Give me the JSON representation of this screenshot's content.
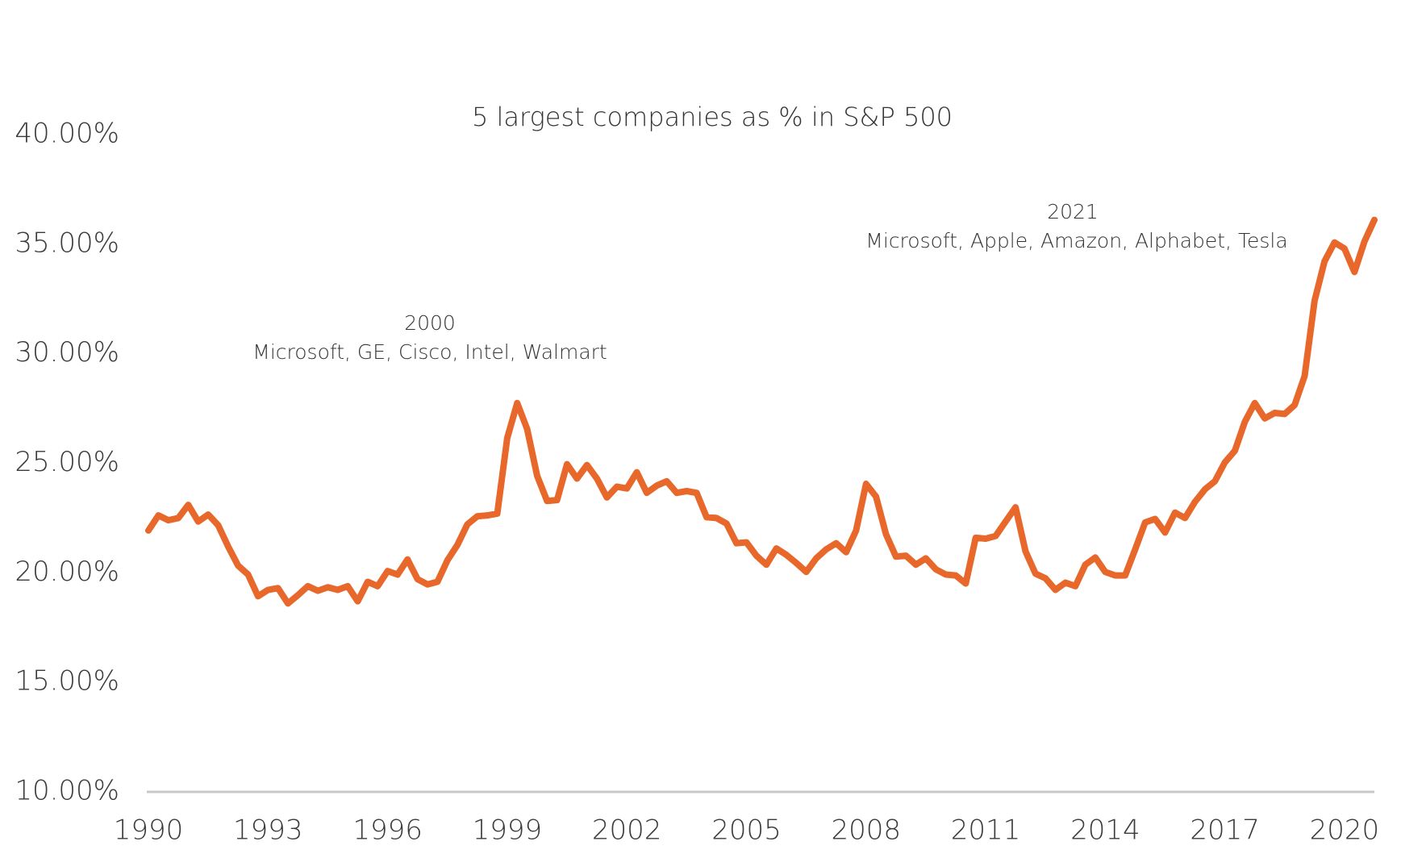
{
  "chart_data": {
    "type": "line",
    "title": "5 largest companies as % in S&P 500",
    "annotations": [
      {
        "lines": [
          "2000",
          "Microsoft, GE, Cisco, Intel, Walmart"
        ]
      },
      {
        "lines": [
          "2021",
          "Microsoft, Apple, Amazon, Alphabet, Tesla"
        ]
      }
    ],
    "x": [
      1990,
      1990.25,
      1990.5,
      1990.75,
      1991,
      1991.25,
      1991.5,
      1991.75,
      1992,
      1992.25,
      1992.5,
      1992.75,
      1993,
      1993.25,
      1993.5,
      1993.75,
      1994,
      1994.25,
      1994.5,
      1994.75,
      1995,
      1995.25,
      1995.5,
      1995.75,
      1996,
      1996.25,
      1996.5,
      1996.75,
      1997,
      1997.25,
      1997.5,
      1997.75,
      1998,
      1998.25,
      1998.5,
      1998.75,
      1999,
      1999.25,
      1999.5,
      1999.75,
      2000,
      2000.25,
      2000.5,
      2000.75,
      2001,
      2001.25,
      2001.5,
      2001.75,
      2002,
      2002.25,
      2002.5,
      2002.75,
      2003,
      2003.25,
      2003.5,
      2003.75,
      2004,
      2004.25,
      2004.5,
      2004.75,
      2005,
      2005.25,
      2005.5,
      2005.75,
      2006,
      2006.25,
      2006.5,
      2006.75,
      2007,
      2007.25,
      2007.5,
      2007.75,
      2008,
      2008.25,
      2008.5,
      2008.75,
      2009,
      2009.25,
      2009.5,
      2009.75,
      2010,
      2010.25,
      2010.5,
      2010.75,
      2011,
      2011.25,
      2011.5,
      2011.75,
      2012,
      2012.25,
      2012.5,
      2012.75,
      2013,
      2013.25,
      2013.5,
      2013.75,
      2014,
      2014.25,
      2014.5,
      2014.75,
      2015,
      2015.25,
      2015.5,
      2015.75,
      2016,
      2016.25,
      2016.5,
      2016.75,
      2017,
      2017.25,
      2017.5,
      2017.75,
      2018,
      2018.25,
      2018.5,
      2018.75,
      2019,
      2019.25,
      2019.5,
      2019.75,
      2020,
      2020.25,
      2020.5,
      2020.75
    ],
    "series": [
      {
        "name": "5 largest companies",
        "color": "#e8672a",
        "values": [
          21.93,
          22.62,
          22.4,
          22.5,
          23.1,
          22.34,
          22.66,
          22.17,
          21.2,
          20.33,
          19.92,
          18.93,
          19.22,
          19.3,
          18.6,
          18.98,
          19.39,
          19.18,
          19.34,
          19.22,
          19.39,
          18.7,
          19.59,
          19.39,
          20.08,
          19.92,
          20.61,
          19.71,
          19.47,
          19.59,
          20.57,
          21.27,
          22.21,
          22.58,
          22.62,
          22.7,
          26.15,
          27.75,
          26.56,
          24.43,
          23.28,
          23.32,
          24.96,
          24.3,
          24.92,
          24.3,
          23.44,
          23.93,
          23.85,
          24.59,
          23.65,
          23.98,
          24.18,
          23.65,
          23.73,
          23.65,
          22.54,
          22.5,
          22.25,
          21.35,
          21.39,
          20.78,
          20.37,
          21.11,
          20.82,
          20.45,
          20.04,
          20.66,
          21.07,
          21.35,
          20.94,
          21.93,
          24.06,
          23.48,
          21.76,
          20.74,
          20.78,
          20.37,
          20.66,
          20.16,
          19.92,
          19.88,
          19.51,
          21.6,
          21.56,
          21.68,
          22.34,
          22.99,
          20.98,
          19.96,
          19.75,
          19.22,
          19.55,
          19.39,
          20.37,
          20.7,
          20.04,
          19.88,
          19.88,
          21.07,
          22.3,
          22.46,
          21.84,
          22.75,
          22.5,
          23.24,
          23.81,
          24.18,
          25.04,
          25.57,
          26.89,
          27.75,
          27.05,
          27.3,
          27.25,
          27.66,
          28.98,
          32.42,
          34.22,
          35.08,
          34.8,
          33.73,
          35.12,
          36.11
        ]
      }
    ],
    "xlim": [
      1990,
      2020.75
    ],
    "xticks": [
      1990,
      1993,
      1996,
      1999,
      2002,
      2005,
      2008,
      2011,
      2014,
      2017,
      2020
    ],
    "ylim": [
      10,
      40
    ],
    "yticks": [
      {
        "value": 10,
        "label": "10.00%"
      },
      {
        "value": 15,
        "label": "15.00%"
      },
      {
        "value": 20,
        "label": "20.00%"
      },
      {
        "value": 25,
        "label": "25.00%"
      },
      {
        "value": 30,
        "label": "30.00%"
      },
      {
        "value": 35,
        "label": "35.00%"
      },
      {
        "value": 40,
        "label": "40.00%"
      }
    ],
    "grid": false
  }
}
